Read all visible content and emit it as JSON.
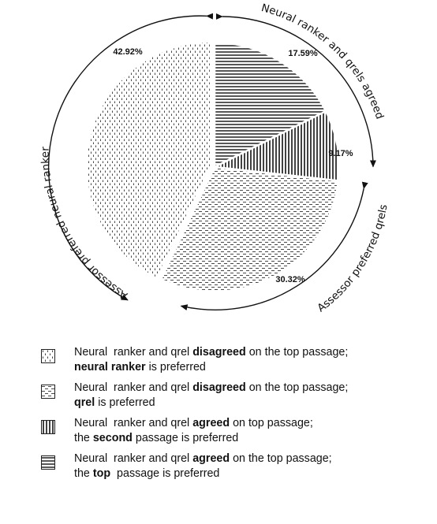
{
  "chart_data": {
    "type": "pie",
    "slices": [
      {
        "label": "Neural ranker and qrel agreed on the top passage; the top passage is preferred",
        "value": 17.59,
        "display": "17.59%",
        "pattern": "horizontal"
      },
      {
        "label": "Neural ranker and qrel agreed on top passage; the second passage is preferred",
        "value": 9.17,
        "display": "9.17%",
        "pattern": "vertical"
      },
      {
        "label": "Neural ranker and qrel disagreed on the top passage; qrel is preferred",
        "value": 30.32,
        "display": "30.32%",
        "pattern": "dashes"
      },
      {
        "label": "Neural ranker and qrel disagreed on the top passage; neural ranker is preferred",
        "value": 42.92,
        "display": "42.92%",
        "pattern": "dots"
      }
    ],
    "start_angle": "12 o'clock",
    "direction": "clockwise",
    "outer_arcs": [
      {
        "text": "Neural ranker and qrels agreed"
      },
      {
        "text": "Assessor preferred qrels"
      },
      {
        "text": "Assessor preferred neural ranker"
      }
    ]
  },
  "legend": [
    {
      "pattern": "dots",
      "line1": [
        {
          "t": "Neural  ranker and qrel "
        },
        {
          "t": "disagreed",
          "b": true
        },
        {
          "t": " on the top passage;"
        }
      ],
      "line2": [
        {
          "t": "neural ranker",
          "b": true
        },
        {
          "t": " is preferred"
        }
      ]
    },
    {
      "pattern": "dashes",
      "line1": [
        {
          "t": "Neural  ranker and qrel "
        },
        {
          "t": "disagreed",
          "b": true
        },
        {
          "t": " on the top passage;"
        }
      ],
      "line2": [
        {
          "t": "qrel",
          "b": true
        },
        {
          "t": " is preferred"
        }
      ]
    },
    {
      "pattern": "vertical",
      "line1": [
        {
          "t": "Neural  ranker and qrel "
        },
        {
          "t": "agreed",
          "b": true
        },
        {
          "t": " on top passage;"
        }
      ],
      "line2": [
        {
          "t": "the "
        },
        {
          "t": "second",
          "b": true
        },
        {
          "t": " passage is preferred"
        }
      ]
    },
    {
      "pattern": "horizontal",
      "line1": [
        {
          "t": "Neural  ranker and qrel "
        },
        {
          "t": "agreed",
          "b": true
        },
        {
          "t": " on the top passage;"
        }
      ],
      "line2": [
        {
          "t": "the "
        },
        {
          "t": "top",
          "b": true
        },
        {
          "t": "  passage is preferred"
        }
      ]
    }
  ]
}
